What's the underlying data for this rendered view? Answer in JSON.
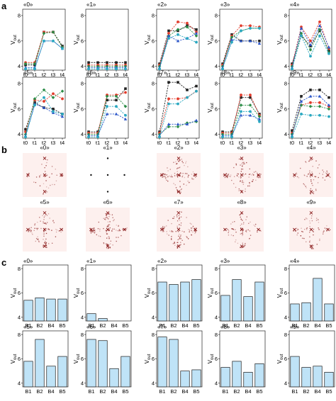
{
  "figure": {
    "panel_letters": [
      "a",
      "b",
      "c"
    ]
  },
  "colors": {
    "series": [
      "#222222",
      "#e23c2c",
      "#2a8c46",
      "#2a55c8",
      "#2aa8c0"
    ],
    "bar_fill": "#bfe3f7",
    "bar_stroke": "#1b1b1b",
    "heat": "#8a1c1c",
    "heat_bg": "#fdf0ee"
  },
  "chart_data": [
    {
      "id": "a",
      "type": "line",
      "x": [
        "t0",
        "t1",
        "t2",
        "t3",
        "t4"
      ],
      "ylabel_main": "V",
      "ylabel_sub": "out",
      "ylim": [
        3.7,
        8.5
      ],
      "yticks": [
        4,
        6,
        8
      ],
      "series_styles": [
        "solid",
        "solid",
        "solid",
        "solid",
        "solid"
      ],
      "panels": [
        {
          "label": "«0»",
          "series": [
            {
              "values": [
                4.1,
                4.1,
                6.7,
                6.7,
                5.6
              ]
            },
            {
              "values": [
                4.3,
                4.3,
                6.7,
                6.7,
                5.5
              ]
            },
            {
              "values": [
                4.2,
                4.2,
                6.6,
                6.7,
                5.5
              ]
            },
            {
              "values": [
                3.9,
                3.9,
                6.0,
                6.0,
                5.4
              ]
            },
            {
              "values": [
                3.8,
                3.8,
                6.0,
                6.0,
                5.4
              ]
            }
          ]
        },
        {
          "label": "«1»",
          "series": [
            {
              "values": [
                4.3,
                4.3,
                4.3,
                4.3,
                4.3
              ]
            },
            {
              "values": [
                4.1,
                4.1,
                4.1,
                4.1,
                4.1
              ]
            },
            {
              "values": [
                4.0,
                4.0,
                4.0,
                4.0,
                4.0
              ]
            },
            {
              "values": [
                3.9,
                3.9,
                3.9,
                3.9,
                3.9
              ]
            },
            {
              "values": [
                3.8,
                3.8,
                3.8,
                3.8,
                3.8
              ]
            }
          ]
        },
        {
          "label": "«2»",
          "series": [
            {
              "values": [
                4.2,
                6.8,
                6.8,
                7.2,
                6.9
              ]
            },
            {
              "values": [
                4.1,
                6.6,
                7.5,
                7.4,
                6.7
              ]
            },
            {
              "values": [
                4.0,
                6.4,
                6.9,
                7.1,
                6.4
              ]
            },
            {
              "values": [
                3.9,
                6.4,
                6.0,
                6.2,
                6.6
              ]
            },
            {
              "values": [
                3.8,
                6.2,
                6.5,
                6.2,
                5.9
              ]
            }
          ]
        },
        {
          "label": "«3»",
          "series": [
            {
              "values": [
                4.2,
                6.5,
                6.0,
                6.0,
                6.0
              ]
            },
            {
              "values": [
                4.1,
                6.4,
                7.2,
                7.2,
                7.1
              ]
            },
            {
              "values": [
                4.0,
                6.3,
                6.8,
                7.0,
                7.0
              ]
            },
            {
              "values": [
                3.9,
                6.1,
                6.0,
                6.0,
                5.8
              ]
            },
            {
              "values": [
                3.8,
                5.9,
                6.8,
                7.0,
                7.0
              ]
            }
          ]
        },
        {
          "label": "«4»",
          "series": [
            {
              "values": [
                4.2,
                6.4,
                5.6,
                6.8,
                5.2
              ]
            },
            {
              "values": [
                4.1,
                7.1,
                6.0,
                7.5,
                5.4
              ]
            },
            {
              "values": [
                4.0,
                6.6,
                5.3,
                6.9,
                5.1
              ]
            },
            {
              "values": [
                3.9,
                7.0,
                5.7,
                7.2,
                5.5
              ]
            },
            {
              "values": [
                3.8,
                6.4,
                4.8,
                6.4,
                5.0
              ]
            }
          ]
        },
        {
          "label": "«5»",
          "series": [
            {
              "values": [
                4.4,
                6.5,
                6.1,
                6.0,
                5.6
              ]
            },
            {
              "values": [
                4.2,
                6.7,
                6.6,
                7.2,
                6.8
              ]
            },
            {
              "values": [
                4.0,
                6.8,
                7.5,
                6.9,
                7.4
              ]
            },
            {
              "values": [
                3.9,
                6.4,
                6.1,
                5.7,
                5.4
              ]
            },
            {
              "values": [
                3.8,
                6.3,
                6.9,
                5.8,
                5.6
              ]
            }
          ]
        },
        {
          "label": "«6»",
          "series": [
            {
              "values": [
                4.2,
                4.2,
                6.7,
                6.7,
                7.6
              ]
            },
            {
              "values": [
                4.1,
                4.1,
                7.1,
                7.1,
                7.3
              ]
            },
            {
              "values": [
                4.0,
                4.0,
                7.0,
                7.0,
                6.2
              ]
            },
            {
              "values": [
                3.9,
                3.9,
                5.6,
                5.6,
                5.2
              ]
            },
            {
              "values": [
                3.8,
                3.8,
                6.2,
                6.2,
                5.5
              ]
            }
          ]
        },
        {
          "label": "«7»",
          "series": [
            {
              "values": [
                4.2,
                8.1,
                8.1,
                7.5,
                7.8
              ]
            },
            {
              "values": [
                4.1,
                6.8,
                6.8,
                6.9,
                7.4
              ]
            },
            {
              "values": [
                4.0,
                4.6,
                4.6,
                4.9,
                5.0
              ]
            },
            {
              "values": [
                3.9,
                4.8,
                4.8,
                4.8,
                5.1
              ]
            },
            {
              "values": [
                3.8,
                6.4,
                6.4,
                6.9,
                7.4
              ]
            }
          ]
        },
        {
          "label": "«8»",
          "series": [
            {
              "values": [
                4.2,
                4.2,
                6.9,
                6.9,
                5.6
              ]
            },
            {
              "values": [
                4.1,
                4.1,
                7.1,
                7.1,
                5.5
              ]
            },
            {
              "values": [
                4.0,
                4.0,
                6.3,
                6.3,
                5.4
              ]
            },
            {
              "values": [
                3.9,
                3.9,
                5.5,
                5.5,
                5.2
              ]
            },
            {
              "values": [
                3.8,
                3.8,
                5.8,
                5.8,
                5.0
              ]
            }
          ]
        },
        {
          "label": "«9»",
          "series": [
            {
              "values": [
                4.3,
                7.0,
                7.5,
                7.5,
                6.9
              ]
            },
            {
              "values": [
                4.1,
                6.3,
                6.5,
                6.5,
                6.2
              ]
            },
            {
              "values": [
                4.0,
                6.3,
                6.2,
                6.2,
                6.0
              ]
            },
            {
              "values": [
                3.9,
                6.6,
                7.0,
                7.0,
                6.3
              ]
            },
            {
              "values": [
                3.8,
                5.6,
                5.5,
                5.5,
                5.4
              ]
            }
          ]
        }
      ]
    },
    {
      "id": "b",
      "type": "heatmap",
      "panels": [
        {
          "label": "«0»",
          "intensity": 0.3
        },
        {
          "label": "«1»",
          "intensity": 0.0
        },
        {
          "label": "«2»",
          "intensity": 0.8
        },
        {
          "label": "«3»",
          "intensity": 0.75
        },
        {
          "label": "«4»",
          "intensity": 0.5
        },
        {
          "label": "«5»",
          "intensity": 0.65
        },
        {
          "label": "«6»",
          "intensity": 0.85
        },
        {
          "label": "«7»",
          "intensity": 0.8
        },
        {
          "label": "«8»",
          "intensity": 0.55
        },
        {
          "label": "«9»",
          "intensity": 0.5
        }
      ]
    },
    {
      "id": "c",
      "type": "bar",
      "categories": [
        "B1",
        "B2",
        "B4",
        "B5"
      ],
      "ylabel_main": "V",
      "ylabel_sub": "out",
      "ylim": [
        3.7,
        8.3
      ],
      "yticks": [
        4,
        6,
        8
      ],
      "panels": [
        {
          "label": "«0»",
          "values": [
            5.4,
            5.6,
            5.5,
            5.5
          ]
        },
        {
          "label": "«1»",
          "values": [
            4.3,
            3.9,
            3.7,
            3.7
          ]
        },
        {
          "label": "«2»",
          "values": [
            6.9,
            6.7,
            6.9,
            7.1
          ]
        },
        {
          "label": "«3»",
          "values": [
            5.8,
            7.1,
            5.7,
            6.9
          ]
        },
        {
          "label": "«4»",
          "values": [
            5.1,
            5.2,
            7.2,
            5.1
          ]
        },
        {
          "label": "«5»",
          "values": [
            5.8,
            7.6,
            5.4,
            6.2
          ]
        },
        {
          "label": "«6»",
          "values": [
            7.6,
            7.5,
            5.2,
            6.2
          ]
        },
        {
          "label": "«7»",
          "values": [
            7.8,
            7.6,
            5.0,
            5.1
          ]
        },
        {
          "label": "«8»",
          "values": [
            5.3,
            5.8,
            4.9,
            5.6
          ]
        },
        {
          "label": "«9»",
          "values": [
            6.2,
            5.3,
            5.4,
            4.9
          ]
        }
      ]
    }
  ]
}
